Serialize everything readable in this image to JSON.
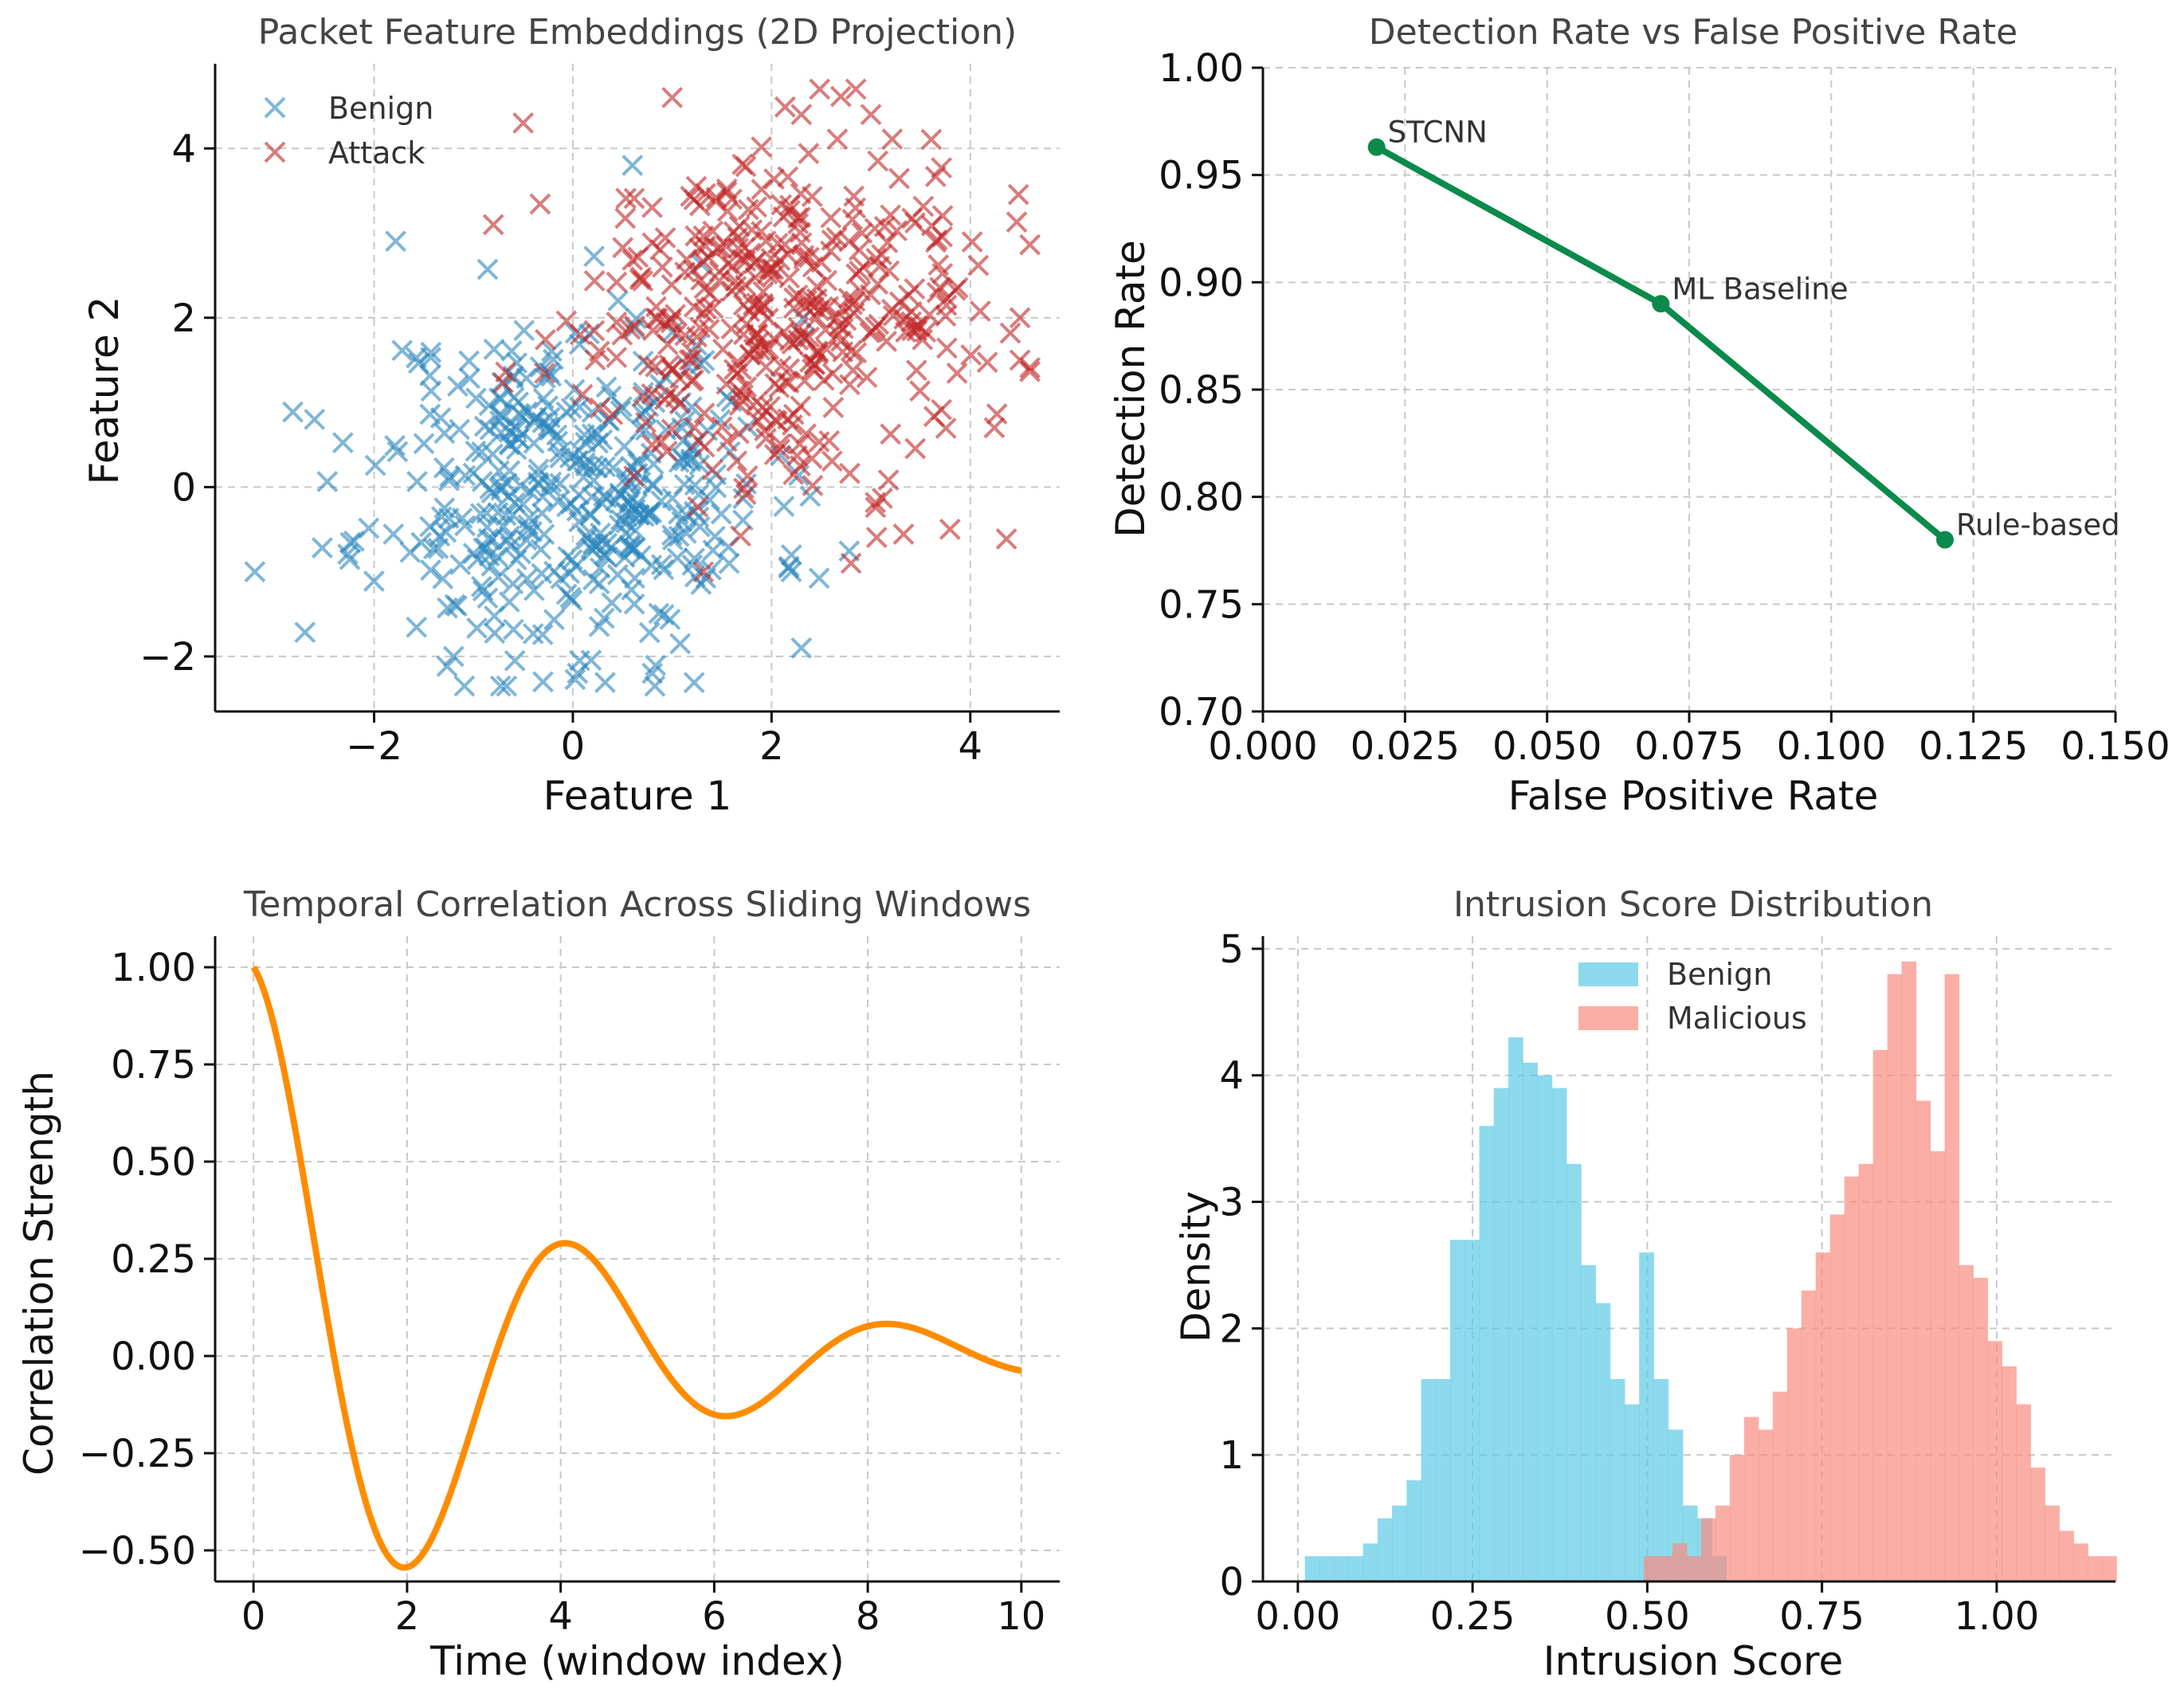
{
  "chart_data": [
    {
      "type": "scatter",
      "title": "Packet Feature Embeddings (2D Projection)",
      "xlabel": "Feature 1",
      "ylabel": "Feature 2",
      "xlim": [
        -3.6,
        4.9
      ],
      "ylim": [
        -2.65,
        5.0
      ],
      "xticks": [
        -2,
        0,
        2,
        4
      ],
      "yticks": [
        -2,
        0,
        2,
        4
      ],
      "xtick_labels": [
        "−2",
        "0",
        "2",
        "4"
      ],
      "ytick_labels": [
        "−2",
        "0",
        "2",
        "4"
      ],
      "grid": true,
      "legend": "top-left",
      "series": [
        {
          "name": "Benign",
          "color": "#2a86bd",
          "marker": "x",
          "n": 400,
          "mean": [
            0.0,
            0.0
          ],
          "sd": [
            1.0,
            1.0
          ],
          "seed": 11,
          "extra_points": [
            [
              -3.2,
              -1.0
            ],
            [
              -2.6,
              0.8
            ],
            [
              -1.2,
              -2.0
            ],
            [
              0.6,
              3.8
            ],
            [
              0.8,
              -2.2
            ],
            [
              2.3,
              -1.9
            ],
            [
              -0.3,
              -2.3
            ],
            [
              2.2,
              -0.8
            ]
          ]
        },
        {
          "name": "Attack",
          "color": "#c02424",
          "marker": "x",
          "n": 400,
          "mean": [
            2.0,
            2.0
          ],
          "sd": [
            1.0,
            1.0
          ],
          "seed": 29,
          "extra_points": [
            [
              -0.5,
              4.3
            ],
            [
              1.0,
              4.6
            ],
            [
              2.3,
              4.4
            ],
            [
              3.0,
              4.4
            ],
            [
              4.5,
              2.0
            ],
            [
              2.8,
              -0.9
            ],
            [
              -0.8,
              3.1
            ],
            [
              4.5,
              1.5
            ]
          ]
        }
      ]
    },
    {
      "type": "line",
      "title": "Detection Rate vs False Positive Rate",
      "xlabel": "False Positive Rate",
      "ylabel": "Detection Rate",
      "xlim": [
        0.0,
        0.15
      ],
      "ylim": [
        0.7,
        1.0
      ],
      "xticks": [
        0.0,
        0.025,
        0.05,
        0.075,
        0.1,
        0.125,
        0.15
      ],
      "yticks": [
        0.7,
        0.75,
        0.8,
        0.85,
        0.9,
        0.95,
        1.0
      ],
      "xtick_labels": [
        "0.000",
        "0.025",
        "0.050",
        "0.075",
        "0.100",
        "0.125",
        "0.150"
      ],
      "ytick_labels": [
        "0.70",
        "0.75",
        "0.80",
        "0.85",
        "0.90",
        "0.95",
        "1.00"
      ],
      "grid": true,
      "color": "#0a8a4b",
      "x": [
        0.02,
        0.07,
        0.12
      ],
      "y": [
        0.963,
        0.89,
        0.78
      ],
      "labels": [
        "STCNN",
        "ML Baseline",
        "Rule-based"
      ]
    },
    {
      "type": "line",
      "title": "Temporal Correlation Across Sliding Windows",
      "xlabel": "Time (window index)",
      "ylabel": "Correlation Strength",
      "xlim": [
        -0.5,
        10.5
      ],
      "ylim": [
        -0.58,
        1.08
      ],
      "xticks": [
        0,
        2,
        4,
        6,
        8,
        10
      ],
      "yticks": [
        -0.5,
        -0.25,
        0.0,
        0.25,
        0.5,
        0.75,
        1.0
      ],
      "xtick_labels": [
        "0",
        "2",
        "4",
        "6",
        "8",
        "10"
      ],
      "ytick_labels": [
        "−0.50",
        "−0.25",
        "0.00",
        "0.25",
        "0.50",
        "0.75",
        "1.00"
      ],
      "grid": true,
      "color": "#ff8c00",
      "function": "exp(-0.3*t)*cos(1.5*t)",
      "t_range": [
        0,
        10
      ]
    },
    {
      "type": "histogram",
      "title": "Intrusion Score Distribution",
      "xlabel": "Intrusion Score",
      "ylabel": "Density",
      "xlim": [
        -0.05,
        1.17
      ],
      "ylim": [
        0,
        5.1
      ],
      "xticks": [
        0.0,
        0.25,
        0.5,
        0.75,
        1.0
      ],
      "yticks": [
        0,
        1,
        2,
        3,
        4,
        5
      ],
      "xtick_labels": [
        "0.00",
        "0.25",
        "0.50",
        "0.75",
        "1.00"
      ],
      "ytick_labels": [
        "0",
        "1",
        "2",
        "3",
        "4",
        "5"
      ],
      "grid": true,
      "legend": "top-center",
      "series": [
        {
          "name": "Benign",
          "color": "#5dcae6",
          "bin_start": 0.01,
          "bin_width": 0.0208,
          "values": [
            0.2,
            0.2,
            0.2,
            0.2,
            0.3,
            0.5,
            0.6,
            0.8,
            1.6,
            1.6,
            2.7,
            2.7,
            3.6,
            3.9,
            4.3,
            4.1,
            4.0,
            3.9,
            3.3,
            2.5,
            2.2,
            1.6,
            1.4,
            2.6,
            1.6,
            1.2,
            0.6,
            0.5,
            0.2
          ]
        },
        {
          "name": "Malicious",
          "color": "#fa8c80",
          "bin_start": 0.495,
          "bin_width": 0.0205,
          "values": [
            0.2,
            0.2,
            0.3,
            0.2,
            0.5,
            0.6,
            1.0,
            1.3,
            1.2,
            1.5,
            2.0,
            2.3,
            2.6,
            2.9,
            3.2,
            3.3,
            4.2,
            4.8,
            4.9,
            3.8,
            3.4,
            4.8,
            2.5,
            2.4,
            1.9,
            1.7,
            1.4,
            0.9,
            0.6,
            0.4,
            0.3,
            0.2,
            0.2
          ]
        }
      ]
    }
  ]
}
